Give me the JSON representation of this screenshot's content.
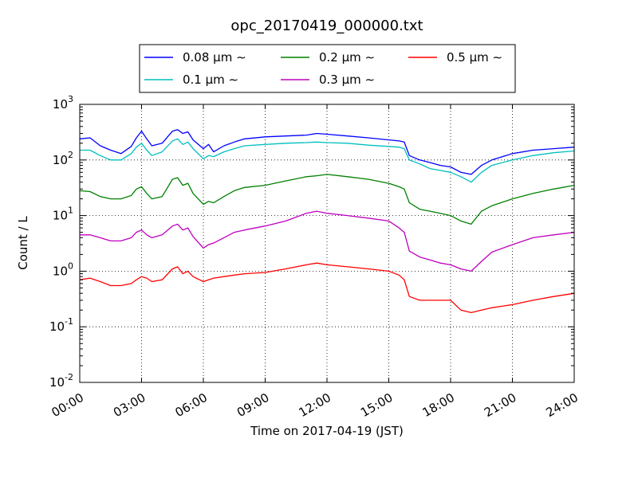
{
  "chart_data": {
    "type": "line",
    "title": "opc_20170419_000000.txt",
    "xlabel": "Time on 2017-04-19 (JST)",
    "ylabel": "Count / L",
    "yscale": "log",
    "ylim": [
      0.01,
      1000
    ],
    "grid": true,
    "legend_position": "top-center",
    "x_ticks": [
      "00:00",
      "03:00",
      "06:00",
      "09:00",
      "12:00",
      "15:00",
      "18:00",
      "21:00",
      "24:00"
    ],
    "y_ticks": [
      {
        "base": "10",
        "exp": "-2",
        "value": 0.01
      },
      {
        "base": "10",
        "exp": "-1",
        "value": 0.1
      },
      {
        "base": "10",
        "exp": "0",
        "value": 1
      },
      {
        "base": "10",
        "exp": "1",
        "value": 10
      },
      {
        "base": "10",
        "exp": "2",
        "value": 100
      },
      {
        "base": "10",
        "exp": "3",
        "value": 1000
      }
    ],
    "x": [
      "00:00",
      "00:30",
      "01:00",
      "01:30",
      "02:00",
      "02:30",
      "02:45",
      "03:00",
      "03:15",
      "03:30",
      "04:00",
      "04:30",
      "04:45",
      "05:00",
      "05:15",
      "05:30",
      "06:00",
      "06:15",
      "06:30",
      "07:00",
      "07:30",
      "08:00",
      "09:00",
      "10:00",
      "11:00",
      "11:30",
      "12:00",
      "13:00",
      "14:00",
      "15:00",
      "15:30",
      "15:45",
      "16:00",
      "16:30",
      "17:00",
      "17:30",
      "18:00",
      "18:30",
      "19:00",
      "19:30",
      "20:00",
      "21:00",
      "22:00",
      "23:00",
      "24:00"
    ],
    "series": [
      {
        "name": "0.08",
        "unit_suffix": " μm  ∼",
        "color": "#0000ff",
        "values": [
          240,
          250,
          180,
          150,
          130,
          175,
          250,
          330,
          240,
          180,
          200,
          330,
          350,
          300,
          320,
          230,
          160,
          190,
          140,
          180,
          210,
          240,
          260,
          270,
          280,
          300,
          290,
          270,
          250,
          230,
          220,
          210,
          120,
          100,
          90,
          80,
          75,
          60,
          55,
          80,
          100,
          130,
          150,
          160,
          170
        ]
      },
      {
        "name": "0.1",
        "unit_suffix": " μm  ∼",
        "color": "#00bfbf",
        "values": [
          150,
          150,
          120,
          100,
          100,
          130,
          170,
          200,
          150,
          120,
          140,
          220,
          240,
          190,
          210,
          160,
          105,
          120,
          115,
          140,
          160,
          180,
          190,
          200,
          205,
          210,
          205,
          200,
          185,
          175,
          170,
          160,
          100,
          85,
          70,
          65,
          60,
          50,
          40,
          60,
          80,
          100,
          120,
          135,
          145
        ]
      },
      {
        "name": "0.2",
        "unit_suffix": " μm  ∼",
        "color": "#008000",
        "values": [
          28,
          27,
          22,
          20,
          20,
          23,
          30,
          33,
          25,
          20,
          22,
          45,
          48,
          35,
          38,
          25,
          16,
          18,
          17,
          22,
          28,
          32,
          35,
          42,
          50,
          52,
          55,
          50,
          45,
          38,
          33,
          30,
          17,
          13,
          12,
          11,
          10,
          8,
          7,
          12,
          15,
          20,
          25,
          30,
          35
        ]
      },
      {
        "name": "0.3",
        "unit_suffix": " μm  ∼",
        "color": "#bf00bf",
        "values": [
          4.5,
          4.5,
          4,
          3.5,
          3.5,
          4,
          5,
          5.5,
          4.5,
          4,
          4.5,
          6.5,
          7,
          5.5,
          6,
          4.2,
          2.6,
          3,
          3.2,
          4,
          5,
          5.5,
          6.5,
          8,
          11,
          12,
          11,
          10,
          9,
          8,
          6,
          5,
          2.3,
          1.8,
          1.6,
          1.4,
          1.3,
          1.1,
          1,
          1.5,
          2.2,
          3,
          4,
          4.5,
          5
        ]
      },
      {
        "name": "0.5",
        "unit_suffix": " μm  ∼",
        "color": "#ff0000",
        "values": [
          0.7,
          0.75,
          0.65,
          0.55,
          0.55,
          0.6,
          0.7,
          0.8,
          0.75,
          0.65,
          0.7,
          1.1,
          1.2,
          0.9,
          1,
          0.8,
          0.65,
          0.7,
          0.75,
          0.8,
          0.85,
          0.9,
          0.95,
          1.1,
          1.3,
          1.4,
          1.3,
          1.2,
          1.1,
          1,
          0.85,
          0.7,
          0.35,
          0.3,
          0.3,
          0.3,
          0.3,
          0.2,
          0.18,
          0.2,
          0.22,
          0.25,
          0.3,
          0.35,
          0.4
        ]
      }
    ]
  }
}
